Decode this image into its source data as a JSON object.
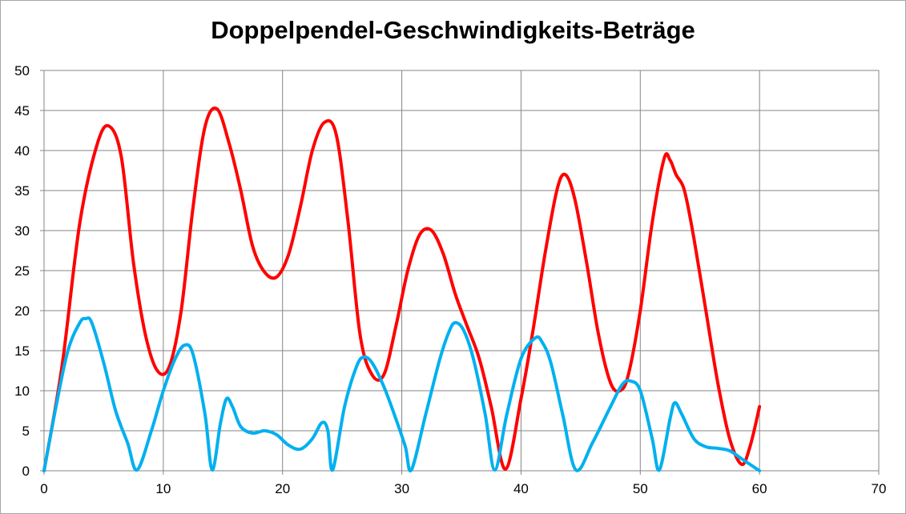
{
  "chart_data": {
    "type": "line",
    "title": "Doppelpendel-Geschwindigkeits-Beträge",
    "xlabel": "",
    "ylabel": "",
    "xlim": [
      0,
      70
    ],
    "ylim": [
      0,
      50
    ],
    "x_ticks": [
      0,
      10,
      20,
      30,
      40,
      50,
      60,
      70
    ],
    "y_ticks": [
      0,
      5,
      10,
      15,
      20,
      25,
      30,
      35,
      40,
      45,
      50
    ],
    "grid": true,
    "legend": "none",
    "smooth": true,
    "series": [
      {
        "color": "#ff0000",
        "points": [
          [
            0,
            0
          ],
          [
            1.5,
            13
          ],
          [
            3,
            31
          ],
          [
            4.5,
            41
          ],
          [
            5.5,
            43
          ],
          [
            6.5,
            39
          ],
          [
            7.5,
            26
          ],
          [
            8.5,
            17
          ],
          [
            9.5,
            12.5
          ],
          [
            10.5,
            13
          ],
          [
            11.5,
            20
          ],
          [
            12.5,
            33
          ],
          [
            13.5,
            43
          ],
          [
            14.5,
            45.2
          ],
          [
            15.5,
            41
          ],
          [
            16.5,
            35
          ],
          [
            17.5,
            28
          ],
          [
            18.5,
            24.8
          ],
          [
            19.5,
            24.2
          ],
          [
            20.5,
            27
          ],
          [
            21.5,
            33
          ],
          [
            22.5,
            40
          ],
          [
            23.5,
            43.5
          ],
          [
            24.5,
            42
          ],
          [
            25.5,
            31
          ],
          [
            26.5,
            17
          ],
          [
            27.5,
            12
          ],
          [
            28.5,
            12
          ],
          [
            29.5,
            18
          ],
          [
            30.5,
            25
          ],
          [
            31.5,
            29.5
          ],
          [
            32.5,
            30
          ],
          [
            33.5,
            27
          ],
          [
            34.5,
            22
          ],
          [
            35.5,
            18
          ],
          [
            36.5,
            14
          ],
          [
            37.5,
            8
          ],
          [
            38.7,
            0.2
          ],
          [
            40,
            9
          ],
          [
            41,
            17.5
          ],
          [
            42,
            27
          ],
          [
            43,
            35
          ],
          [
            43.7,
            37
          ],
          [
            44.5,
            34
          ],
          [
            45.5,
            26
          ],
          [
            46.5,
            17
          ],
          [
            47.5,
            11
          ],
          [
            48.3,
            10
          ],
          [
            49,
            12
          ],
          [
            50,
            20
          ],
          [
            51,
            31
          ],
          [
            52,
            39
          ],
          [
            52.5,
            38.8
          ],
          [
            53,
            37
          ],
          [
            53.7,
            35
          ],
          [
            54.5,
            29
          ],
          [
            55.5,
            20
          ],
          [
            56.5,
            11
          ],
          [
            57.5,
            4
          ],
          [
            58.5,
            0.8
          ],
          [
            59.2,
            3
          ],
          [
            60,
            8
          ]
        ]
      },
      {
        "color": "#00b0f0",
        "points": [
          [
            0,
            0
          ],
          [
            1,
            8
          ],
          [
            2,
            15
          ],
          [
            3,
            18.5
          ],
          [
            3.5,
            19
          ],
          [
            4,
            18.5
          ],
          [
            5,
            13.5
          ],
          [
            6,
            7.5
          ],
          [
            7,
            3.5
          ],
          [
            7.8,
            0.1
          ],
          [
            9,
            5
          ],
          [
            10,
            10
          ],
          [
            11,
            14
          ],
          [
            11.8,
            15.7
          ],
          [
            12.5,
            14.5
          ],
          [
            13.5,
            7
          ],
          [
            14.1,
            0.1
          ],
          [
            14.8,
            6
          ],
          [
            15.3,
            9
          ],
          [
            15.8,
            8
          ],
          [
            16.5,
            5.5
          ],
          [
            17.5,
            4.7
          ],
          [
            18.5,
            5
          ],
          [
            19.5,
            4.5
          ],
          [
            20.5,
            3.2
          ],
          [
            21.5,
            2.7
          ],
          [
            22.5,
            4
          ],
          [
            23.3,
            6
          ],
          [
            23.8,
            5
          ],
          [
            24.2,
            0.1
          ],
          [
            25.2,
            8
          ],
          [
            26.2,
            13
          ],
          [
            26.8,
            14.2
          ],
          [
            27.5,
            13.5
          ],
          [
            28.5,
            10.5
          ],
          [
            29.5,
            6.5
          ],
          [
            30.3,
            3
          ],
          [
            30.8,
            0.1
          ],
          [
            32,
            7
          ],
          [
            33.2,
            14
          ],
          [
            34,
            17.5
          ],
          [
            34.5,
            18.5
          ],
          [
            35.2,
            17.5
          ],
          [
            36,
            14
          ],
          [
            37,
            7
          ],
          [
            37.8,
            0.1
          ],
          [
            38.8,
            7
          ],
          [
            40,
            14
          ],
          [
            41.2,
            16.6
          ],
          [
            41.8,
            16
          ],
          [
            42.5,
            13.5
          ],
          [
            43.5,
            7
          ],
          [
            44.6,
            0.1
          ],
          [
            46,
            3.5
          ],
          [
            47.5,
            8
          ],
          [
            48.5,
            10.8
          ],
          [
            49.2,
            11.2
          ],
          [
            50,
            10
          ],
          [
            51,
            4
          ],
          [
            51.6,
            0.1
          ],
          [
            52.5,
            6.5
          ],
          [
            52.9,
            8.5
          ],
          [
            53.5,
            7
          ],
          [
            54.5,
            4
          ],
          [
            55.5,
            3
          ],
          [
            56.5,
            2.8
          ],
          [
            57.5,
            2.5
          ],
          [
            58.5,
            1.5
          ],
          [
            60,
            0
          ]
        ]
      }
    ]
  }
}
